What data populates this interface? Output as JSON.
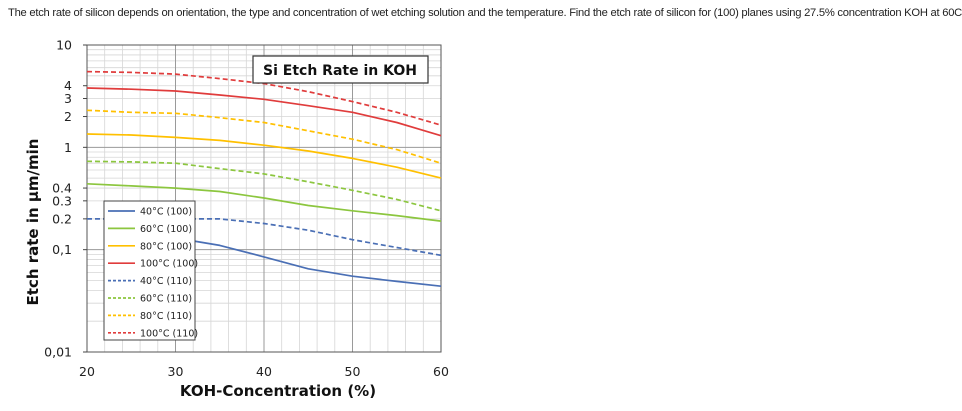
{
  "question_text": "The etch rate of silicon depends on orientation, the type and concentration of wet etching solution and the temperature. Find the etch rate of silicon for (100) planes using 27.5% concentration KOH at 60C",
  "chart_data": {
    "type": "line",
    "title": "Si Etch Rate in KOH",
    "xlabel": "KOH-Concentration (%)",
    "ylabel": "Etch rate in µm/min",
    "xlim": [
      20,
      60
    ],
    "ylim": [
      0.01,
      10
    ],
    "yscale": "log",
    "grid": true,
    "legend_position": "bottom-left",
    "x_ticks": [
      {
        "value": 20,
        "label": "20"
      },
      {
        "value": 30,
        "label": "30"
      },
      {
        "value": 40,
        "label": "40"
      },
      {
        "value": 50,
        "label": "50"
      },
      {
        "value": 60,
        "label": "60"
      }
    ],
    "y_ticks": [
      {
        "value": 10,
        "label": "10"
      },
      {
        "value": 4,
        "label": "4"
      },
      {
        "value": 3,
        "label": "3"
      },
      {
        "value": 2,
        "label": "2"
      },
      {
        "value": 1,
        "label": "1"
      },
      {
        "value": 0.4,
        "label": "0.4"
      },
      {
        "value": 0.3,
        "label": "0.3"
      },
      {
        "value": 0.2,
        "label": "0.2"
      },
      {
        "value": 0.1,
        "label": "0,1"
      },
      {
        "value": 0.01,
        "label": "0,01"
      }
    ],
    "series": [
      {
        "name": "40°C (100)",
        "color": "#4a6fb5",
        "dash": false,
        "x": [
          30,
          35,
          40,
          45,
          50,
          55,
          60
        ],
        "y": [
          0.13,
          0.11,
          0.085,
          0.065,
          0.055,
          0.049,
          0.044
        ]
      },
      {
        "name": "60°C (100)",
        "color": "#8cc63f",
        "dash": false,
        "x": [
          20,
          25,
          30,
          35,
          40,
          45,
          50,
          55,
          60
        ],
        "y": [
          0.44,
          0.42,
          0.4,
          0.37,
          0.32,
          0.27,
          0.24,
          0.215,
          0.19
        ]
      },
      {
        "name": "80°C (100)",
        "color": "#ffc000",
        "dash": false,
        "x": [
          20,
          25,
          30,
          35,
          40,
          45,
          50,
          55,
          60
        ],
        "y": [
          1.35,
          1.32,
          1.25,
          1.17,
          1.05,
          0.92,
          0.78,
          0.64,
          0.5
        ]
      },
      {
        "name": "100°C (100)",
        "color": "#e03c3c",
        "dash": false,
        "x": [
          20,
          25,
          30,
          35,
          40,
          45,
          50,
          55,
          60
        ],
        "y": [
          3.8,
          3.7,
          3.55,
          3.25,
          2.95,
          2.55,
          2.2,
          1.75,
          1.3
        ]
      },
      {
        "name": "40°C (110)",
        "color": "#4a6fb5",
        "dash": true,
        "x": [
          20,
          25,
          30,
          35,
          40,
          45,
          50,
          55,
          60
        ],
        "y": [
          0.2,
          0.2,
          0.2,
          0.2,
          0.18,
          0.155,
          0.125,
          0.105,
          0.088
        ]
      },
      {
        "name": "60°C (110)",
        "color": "#8cc63f",
        "dash": true,
        "x": [
          20,
          25,
          30,
          35,
          40,
          45,
          50,
          55,
          60
        ],
        "y": [
          0.73,
          0.72,
          0.7,
          0.62,
          0.55,
          0.46,
          0.38,
          0.31,
          0.24
        ]
      },
      {
        "name": "80°C (110)",
        "color": "#ffc000",
        "dash": true,
        "x": [
          20,
          25,
          30,
          35,
          40,
          45,
          50,
          55,
          60
        ],
        "y": [
          2.3,
          2.2,
          2.15,
          1.95,
          1.75,
          1.45,
          1.2,
          0.95,
          0.7
        ]
      },
      {
        "name": "100°C (110)",
        "color": "#e03c3c",
        "dash": true,
        "x": [
          20,
          25,
          30,
          35,
          40,
          45,
          50,
          55,
          60
        ],
        "y": [
          5.5,
          5.4,
          5.2,
          4.7,
          4.2,
          3.5,
          2.8,
          2.2,
          1.65
        ]
      }
    ]
  }
}
